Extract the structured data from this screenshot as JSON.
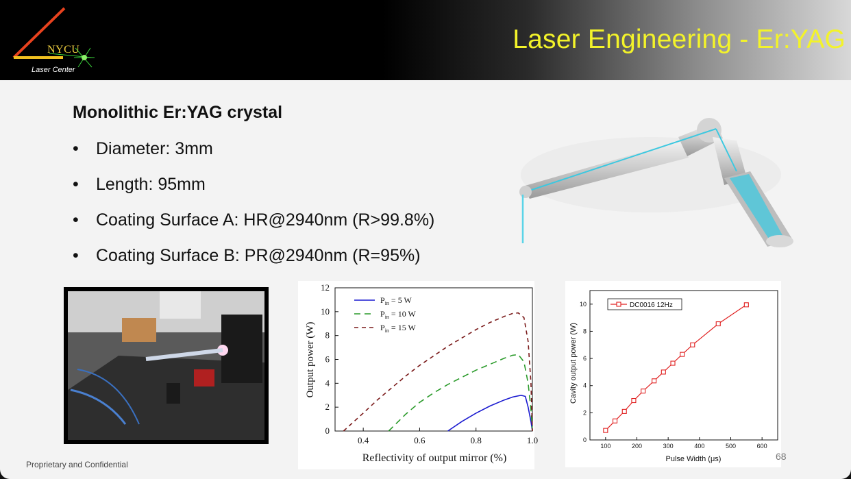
{
  "header": {
    "title": "Laser Engineering - Er:YAG",
    "logo_text": "NYCU",
    "logo_subtitle": "Laser Center"
  },
  "content": {
    "heading": "Monolithic Er:YAG crystal",
    "bullets": [
      "Diameter: 3mm",
      "Length: 95mm",
      "Coating Surface A: HR@2940nm (R>99.8%)",
      "Coating Surface B: PR@2940nm (R=95%)"
    ]
  },
  "footer": {
    "text": "Proprietary and Confidential",
    "page_number": "68"
  },
  "colors": {
    "title": "#f3f32a",
    "series_5W": "#1a1ad0",
    "series_10W": "#2a9a2a",
    "series_15W": "#7a1a1a",
    "pulse_series": "#e02020"
  },
  "chart_data": [
    {
      "type": "line",
      "xlabel": "Reflectivity of output mirror (%)",
      "ylabel": "Output power (W)",
      "xlim": [
        0.3,
        1.0
      ],
      "ylim": [
        0,
        12
      ],
      "xticks": [
        "0.4",
        "0.6",
        "0.8",
        "1.0"
      ],
      "yticks": [
        "0",
        "2",
        "4",
        "6",
        "8",
        "10",
        "12"
      ],
      "legend": "top-left",
      "series": [
        {
          "name": "P_in = 5 W",
          "label_main": "P",
          "label_sub": "in",
          "label_rest": " = 5 W",
          "style": "solid",
          "x": [
            0.7,
            0.75,
            0.8,
            0.85,
            0.9,
            0.93,
            0.96,
            0.975,
            0.985,
            0.995,
            1.0
          ],
          "y": [
            0.0,
            0.8,
            1.5,
            2.1,
            2.6,
            2.85,
            3.0,
            2.9,
            2.0,
            0.8,
            0.0
          ]
        },
        {
          "name": "P_in = 10 W",
          "label_main": "P",
          "label_sub": "in",
          "label_rest": " = 10 W",
          "style": "dashed",
          "x": [
            0.49,
            0.55,
            0.6,
            0.65,
            0.7,
            0.75,
            0.8,
            0.85,
            0.9,
            0.93,
            0.95,
            0.97,
            0.985,
            0.995,
            1.0
          ],
          "y": [
            0.0,
            1.4,
            2.4,
            3.2,
            3.9,
            4.5,
            5.1,
            5.6,
            6.1,
            6.35,
            6.4,
            5.8,
            4.0,
            1.8,
            0.0
          ]
        },
        {
          "name": "P_in = 15 W",
          "label_main": "P",
          "label_sub": "in",
          "label_rest": " = 15 W",
          "style": "dashed",
          "x": [
            0.33,
            0.4,
            0.45,
            0.5,
            0.55,
            0.6,
            0.65,
            0.7,
            0.75,
            0.8,
            0.85,
            0.9,
            0.93,
            0.95,
            0.97,
            0.985,
            0.995,
            1.0
          ],
          "y": [
            0.0,
            1.5,
            2.6,
            3.6,
            4.6,
            5.5,
            6.3,
            7.1,
            7.8,
            8.5,
            9.1,
            9.6,
            9.85,
            9.9,
            9.5,
            7.5,
            4.0,
            0.0
          ]
        }
      ]
    },
    {
      "type": "line",
      "xlabel": "Pulse Width (μs)",
      "ylabel": "Cavity output power (W)",
      "xlim": [
        50,
        650
      ],
      "ylim": [
        0,
        11
      ],
      "xticks": [
        "100",
        "200",
        "300",
        "400",
        "500",
        "600"
      ],
      "yticks": [
        "0",
        "2",
        "4",
        "6",
        "8",
        "10"
      ],
      "legend": "top-left",
      "series": [
        {
          "name": "DC0016 12Hz",
          "x": [
            100,
            130,
            160,
            190,
            220,
            255,
            285,
            315,
            345,
            378,
            460,
            550
          ],
          "y": [
            0.7,
            1.4,
            2.1,
            2.9,
            3.6,
            4.35,
            5.0,
            5.65,
            6.3,
            7.0,
            8.55,
            9.95
          ]
        }
      ]
    }
  ]
}
